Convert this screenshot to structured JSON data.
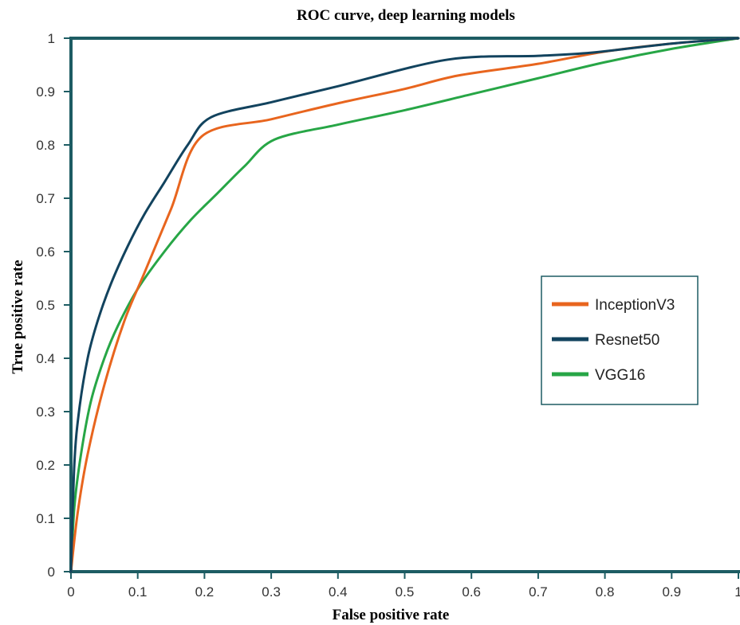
{
  "chart_data": {
    "type": "line",
    "title": "ROC curve, deep learning models",
    "xlabel": "False positive rate",
    "ylabel": "True positive rate",
    "xlim": [
      0,
      1
    ],
    "ylim": [
      0,
      1
    ],
    "xticks": [
      "0",
      "0.1",
      "0.2",
      "0.3",
      "0.4",
      "0.5",
      "0.6",
      "0.7",
      "0.8",
      "0.9",
      "1"
    ],
    "yticks": [
      "0",
      "0.1",
      "0.2",
      "0.3",
      "0.4",
      "0.5",
      "0.6",
      "0.7",
      "0.8",
      "0.9",
      "1"
    ],
    "grid": false,
    "legend_position": "right",
    "series": [
      {
        "name": "InceptionV3",
        "color": "#e8651e",
        "x": [
          0,
          0.01,
          0.025,
          0.05,
          0.08,
          0.11,
          0.15,
          0.195,
          0.3,
          0.4,
          0.5,
          0.58,
          0.7,
          0.8,
          0.9,
          1.0
        ],
        "y": [
          0,
          0.11,
          0.22,
          0.35,
          0.47,
          0.56,
          0.68,
          0.815,
          0.848,
          0.878,
          0.905,
          0.93,
          0.952,
          0.975,
          0.99,
          1.0
        ]
      },
      {
        "name": "Resnet50",
        "color": "#12435e",
        "x": [
          0,
          0.005,
          0.012,
          0.025,
          0.04,
          0.06,
          0.085,
          0.11,
          0.14,
          0.175,
          0.21,
          0.3,
          0.4,
          0.565,
          0.7,
          0.78,
          0.9,
          1.0
        ],
        "y": [
          0,
          0.2,
          0.3,
          0.4,
          0.47,
          0.54,
          0.61,
          0.67,
          0.73,
          0.8,
          0.852,
          0.88,
          0.91,
          0.96,
          0.967,
          0.973,
          0.99,
          1.0
        ]
      },
      {
        "name": "VGG16",
        "color": "#27a646",
        "x": [
          0,
          0.005,
          0.015,
          0.03,
          0.05,
          0.07,
          0.1,
          0.14,
          0.18,
          0.22,
          0.26,
          0.305,
          0.4,
          0.5,
          0.6,
          0.7,
          0.8,
          0.9,
          1.0
        ],
        "y": [
          0,
          0.12,
          0.22,
          0.32,
          0.4,
          0.46,
          0.53,
          0.6,
          0.66,
          0.71,
          0.76,
          0.81,
          0.838,
          0.865,
          0.895,
          0.925,
          0.955,
          0.98,
          1.0
        ]
      }
    ]
  }
}
